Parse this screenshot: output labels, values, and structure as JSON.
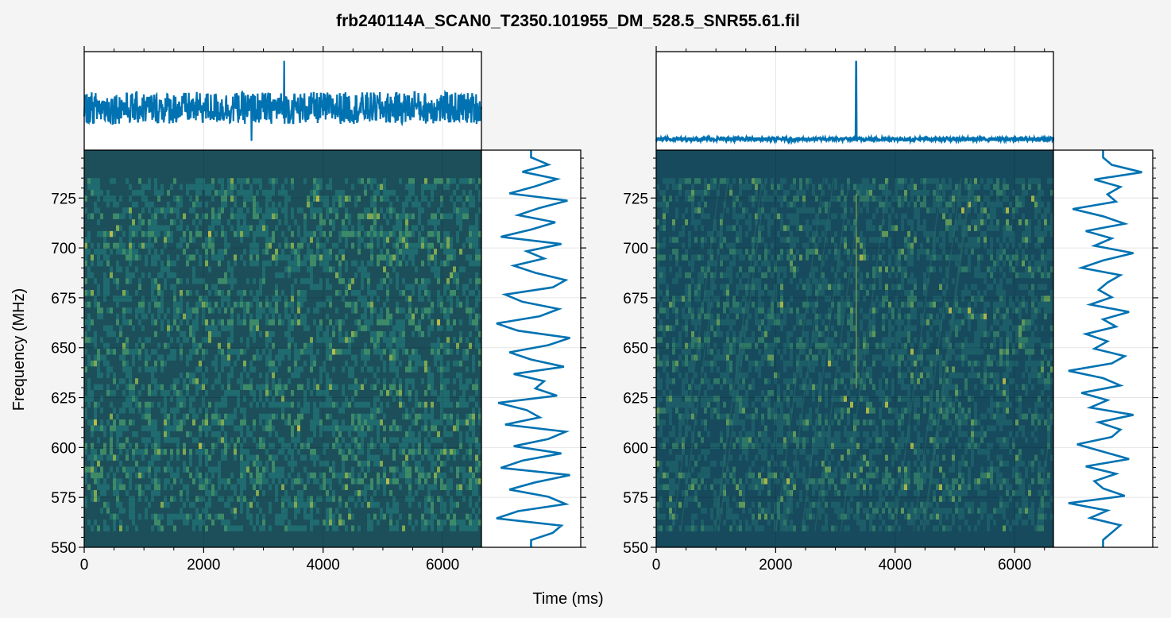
{
  "figure": {
    "title": "frb240114A_SCAN0_T2350.101955_DM_528.5_SNR55.61.fil",
    "xlabel": "Time (ms)",
    "ylabel": "Frequency (MHz)",
    "background": "#f4f4f4"
  },
  "chart_data": [
    {
      "type": "heatmap",
      "panel": "left (non-dedispersed)",
      "x_range": [
        0,
        6650
      ],
      "y_range": [
        550,
        749
      ],
      "xticks": [
        0,
        2000,
        4000,
        6000
      ],
      "xtick_labels": [
        "0",
        "2000",
        "4000",
        "6000"
      ],
      "yticks": [
        550,
        575,
        600,
        625,
        650,
        675,
        700,
        725
      ],
      "ytick_labels": [
        "550",
        "575",
        "600",
        "625",
        "650",
        "675",
        "700",
        "725"
      ],
      "data_freq_range": [
        558,
        735
      ],
      "colormap": [
        "#123f5a",
        "#17526a",
        "#1f6b6f",
        "#3d8a68",
        "#7fa851",
        "#b8bd4a"
      ],
      "masked_color": "#1c4f5a",
      "grid": true,
      "time_series": {
        "color": "#0072b2",
        "baseline": 0.42,
        "noise_halfwidth": 0.18,
        "spikes": [
          {
            "x": 3350,
            "y": 0.95
          },
          {
            "x": 5530,
            "y": 0.6
          },
          {
            "x": 2800,
            "y": 0.05
          }
        ]
      },
      "spectrum": {
        "color": "#0072b2",
        "values": [
          0.5,
          0.5,
          0.75,
          0.85,
          0.1,
          0.35,
          0.9,
          0.7,
          0.25,
          0.55,
          0.95,
          0.15,
          0.4,
          0.85,
          0.3,
          0.7,
          0.9,
          0.2,
          0.6,
          0.45,
          0.12,
          0.8,
          0.55,
          0.65,
          0.3,
          0.88,
          0.5,
          0.25,
          0.7,
          0.95,
          0.35,
          0.1,
          0.6,
          0.82,
          0.4,
          0.2,
          0.75,
          0.9,
          0.55,
          0.3,
          0.65,
          0.45,
          0.85,
          0.15,
          0.5,
          0.78,
          0.35,
          0.6,
          0.92,
          0.25,
          0.55,
          0.8,
          0.4,
          0.7,
          0.5,
          0.5
        ]
      }
    },
    {
      "type": "heatmap",
      "panel": "right (dedispersed)",
      "x_range": [
        0,
        6650
      ],
      "y_range": [
        550,
        749
      ],
      "xticks": [
        0,
        2000,
        4000,
        6000
      ],
      "xtick_labels": [
        "0",
        "2000",
        "4000",
        "6000"
      ],
      "yticks": [
        550,
        575,
        600,
        625,
        650,
        675,
        700,
        725
      ],
      "ytick_labels": [
        "550",
        "575",
        "600",
        "625",
        "650",
        "675",
        "700",
        "725"
      ],
      "data_freq_range": [
        558,
        735
      ],
      "colormap": [
        "#0f3550",
        "#15475f",
        "#1c5d68",
        "#2f7766",
        "#5f975a",
        "#a8b44a"
      ],
      "masked_color": "#164a5c",
      "burst_time": 3350,
      "grid": true,
      "time_series": {
        "color": "#0072b2",
        "baseline": 0.07,
        "noise_halfwidth": 0.02,
        "spikes": [
          {
            "x": 3350,
            "y": 0.95
          }
        ]
      },
      "spectrum": {
        "color": "#0072b2",
        "values": [
          0.5,
          0.5,
          0.6,
          0.7,
          0.35,
          0.55,
          0.1,
          0.75,
          0.5,
          0.4,
          0.65,
          0.3,
          0.8,
          0.5,
          0.2,
          0.6,
          0.7,
          0.45,
          0.85,
          0.35,
          0.55,
          0.25,
          0.7,
          0.5,
          0.1,
          0.6,
          0.75,
          0.4,
          0.55,
          0.3,
          0.65,
          0.5,
          0.8,
          0.35,
          0.6,
          0.45,
          0.55,
          0.7,
          0.25,
          0.5,
          0.85,
          0.4,
          0.6,
          0.3,
          0.75,
          0.5,
          0.15,
          0.65,
          0.55,
          0.7,
          0.4,
          0.95,
          0.6,
          0.5,
          0.5
        ]
      }
    }
  ]
}
